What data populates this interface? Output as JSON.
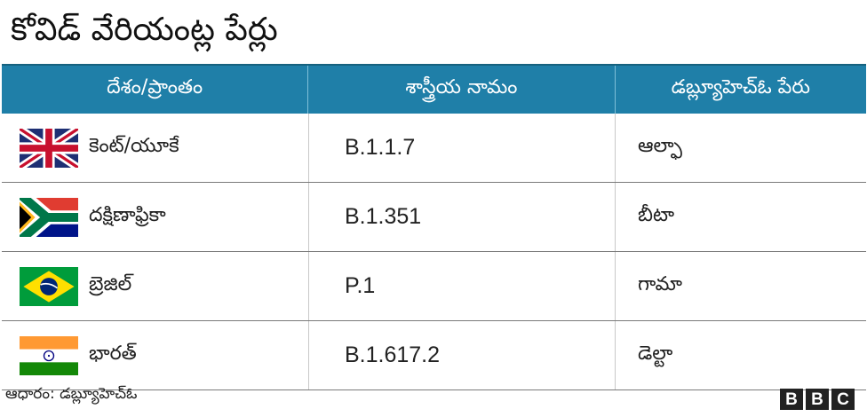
{
  "title": "కోవిడ్ వేరియంట్ల పేర్లు",
  "table": {
    "headers": [
      "దేశం/ప్రాంతం",
      "శాస్త్రీయ నామం",
      "డబ్ల్యూహెచ్ఓ పేరు"
    ],
    "rows": [
      {
        "country": "కెంట్/యూకే",
        "flag": "uk-flag",
        "scientific": "B.1.1.7",
        "who": "ఆల్ఫా"
      },
      {
        "country": "దక్షిణాఫ్రికా",
        "flag": "south-africa-flag",
        "scientific": "B.1.351",
        "who": "బీటా"
      },
      {
        "country": "బ్రెజిల్",
        "flag": "brazil-flag",
        "scientific": "P.1",
        "who": "గామా"
      },
      {
        "country": "భారత్",
        "flag": "india-flag",
        "scientific": "B.1.617.2",
        "who": "డెల్టా"
      }
    ]
  },
  "footer": {
    "source": "ఆధారం: డబ్ల్యూహెచ్ఓ",
    "logo": [
      "B",
      "B",
      "C"
    ]
  },
  "colors": {
    "header_bg": "#1f7fa8",
    "header_text": "#ffffff"
  }
}
